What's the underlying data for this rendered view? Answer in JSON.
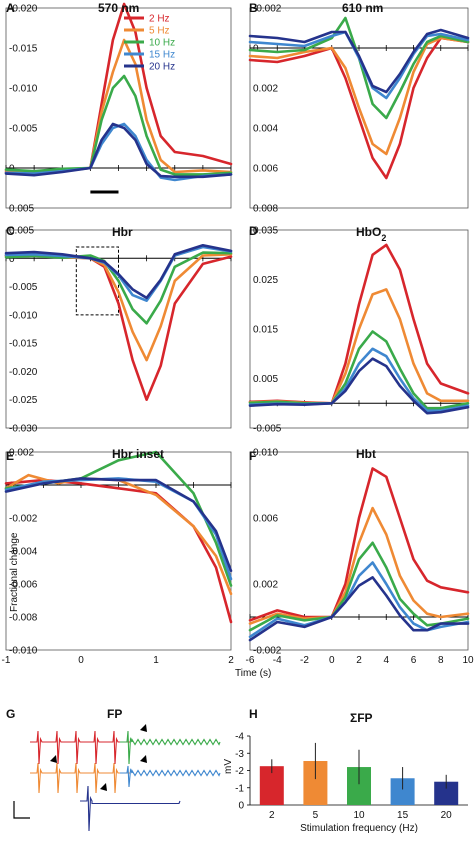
{
  "colors": [
    "#d7262c",
    "#ef8a34",
    "#3aaa4a",
    "#3f87cf",
    "#25338c"
  ],
  "legend": [
    "2 Hz",
    "5 Hz",
    "10 Hz",
    "15 Hz",
    "20 Hz"
  ],
  "shared": {
    "time_axis_label": "Time (s)",
    "fractional_label": "Fractional change",
    "stim_freq_label": "Stimulation frequency (Hz)",
    "mv_label": "mV"
  },
  "chart_data": [
    {
      "id": "A",
      "letter": "A",
      "title": "570 nm",
      "type": "line",
      "x_ticks": [],
      "y_ticks": [
        "-0.020",
        "-0.015",
        "-0.010",
        "-0.005",
        "0",
        "0.005"
      ],
      "ylim": [
        -0.02,
        0.005
      ],
      "y_inverted": true,
      "xlim": [
        -6,
        10
      ],
      "legend_visible": true,
      "legend_placement": "top-right",
      "stimulus_bar": [
        0,
        2
      ],
      "series": [
        {
          "name": "2 Hz",
          "x": [
            -6,
            -4,
            -2,
            0,
            0.8,
            1.6,
            2.4,
            3.2,
            4.0,
            5.0,
            6.0,
            8,
            10
          ],
          "y": [
            0.0005,
            0.0008,
            0.0003,
            0,
            -0.008,
            -0.016,
            -0.0205,
            -0.017,
            -0.01,
            -0.004,
            -0.002,
            -0.0015,
            -0.0005
          ]
        },
        {
          "name": "5 Hz",
          "x": [
            -6,
            -4,
            -2,
            0,
            0.8,
            1.6,
            2.4,
            3.2,
            4.0,
            5.0,
            6.0,
            8,
            10
          ],
          "y": [
            0.0003,
            0.0005,
            0.0002,
            0,
            -0.007,
            -0.012,
            -0.016,
            -0.013,
            -0.006,
            -0.001,
            0.0005,
            0.0003,
            0.0005
          ]
        },
        {
          "name": "10 Hz",
          "x": [
            -6,
            -4,
            -2,
            0,
            0.8,
            1.6,
            2.4,
            3.2,
            4.0,
            5.0,
            6.0,
            8,
            10
          ],
          "y": [
            0.0002,
            0.0004,
            0.0001,
            0,
            -0.006,
            -0.01,
            -0.0115,
            -0.009,
            -0.004,
            0.0002,
            0.0008,
            0.0008,
            0.0006
          ]
        },
        {
          "name": "15 Hz",
          "x": [
            -6,
            -4,
            -2,
            0,
            0.8,
            1.6,
            2.4,
            3.2,
            4.0,
            5.0,
            6.0,
            8,
            10
          ],
          "y": [
            0.0006,
            0.0007,
            0.0004,
            0,
            -0.003,
            -0.005,
            -0.0055,
            -0.004,
            -0.001,
            0.0012,
            0.0015,
            0.001,
            0.0008
          ]
        },
        {
          "name": "20 Hz",
          "x": [
            -6,
            -4,
            -2,
            0,
            0.8,
            1.6,
            2.4,
            3.2,
            4.0,
            5.0,
            6.0,
            8,
            10
          ],
          "y": [
            0.0007,
            0.0009,
            0.0005,
            0,
            -0.0035,
            -0.0055,
            -0.005,
            -0.0035,
            -0.0005,
            0.001,
            0.0011,
            0.0011,
            0.0008
          ]
        }
      ]
    },
    {
      "id": "B",
      "letter": "B",
      "title": "610 nm",
      "type": "line",
      "x_ticks": [],
      "y_ticks": [
        "-0.002",
        "0",
        "0.002",
        "0.004",
        "0.006",
        "0.008"
      ],
      "ylim": [
        -0.002,
        0.008
      ],
      "y_inverted": true,
      "xlim": [
        -6,
        10
      ],
      "series": [
        {
          "name": "2 Hz",
          "x": [
            -6,
            -4,
            -2,
            0,
            1,
            2,
            3,
            4,
            5,
            6,
            7,
            8,
            10
          ],
          "y": [
            0.0006,
            0.0007,
            0.0004,
            0,
            0.0015,
            0.0035,
            0.0055,
            0.0065,
            0.0048,
            0.002,
            0.0005,
            -0.0005,
            -0.0003
          ]
        },
        {
          "name": "5 Hz",
          "x": [
            -6,
            -4,
            -2,
            0,
            1,
            2,
            3,
            4,
            5,
            6,
            7,
            8,
            10
          ],
          "y": [
            0.0004,
            0.0005,
            0.0002,
            0,
            0.001,
            0.003,
            0.0048,
            0.0053,
            0.0035,
            0.0012,
            -0.0002,
            -0.0005,
            -0.0003
          ]
        },
        {
          "name": "10 Hz",
          "x": [
            -6,
            -4,
            -2,
            0,
            1,
            2,
            3,
            4,
            5,
            6,
            7,
            8,
            10
          ],
          "y": [
            0.0001,
            0.0002,
            0.0001,
            -0.0005,
            -0.0015,
            0.0005,
            0.0028,
            0.0035,
            0.0022,
            0.0008,
            -0.0003,
            -0.0006,
            -0.0003
          ]
        },
        {
          "name": "15 Hz",
          "x": [
            -6,
            -4,
            -2,
            0,
            1,
            2,
            3,
            4,
            5,
            6,
            7,
            8,
            10
          ],
          "y": [
            -0.0003,
            -0.0002,
            -0.0001,
            -0.0006,
            -0.0008,
            0.0005,
            0.002,
            0.0025,
            0.0015,
            0.0003,
            -0.0006,
            -0.0007,
            -0.0004
          ]
        },
        {
          "name": "20 Hz",
          "x": [
            -6,
            -4,
            -2,
            0,
            1,
            2,
            3,
            4,
            5,
            6,
            7,
            8,
            10
          ],
          "y": [
            -0.0006,
            -0.0005,
            -0.0003,
            -0.0008,
            -0.0008,
            0.0004,
            0.0019,
            0.0022,
            0.0013,
            0.0002,
            -0.0007,
            -0.0009,
            -0.0005
          ]
        }
      ]
    },
    {
      "id": "C",
      "letter": "C",
      "title": "Hbr",
      "type": "line",
      "x_ticks": [],
      "y_ticks": [
        "0.005",
        "0",
        "-0.005",
        "-0.010",
        "-0.015",
        "-0.020",
        "-0.025",
        "-0.030"
      ],
      "ylim": [
        -0.03,
        0.005
      ],
      "y_inverted": false,
      "xlim": [
        -6,
        10
      ],
      "inset_box": [
        -1,
        2,
        -0.01,
        0.002
      ],
      "series": [
        {
          "name": "2 Hz",
          "x": [
            -6,
            -4,
            -2,
            0,
            1,
            2,
            3,
            4,
            5,
            6,
            8,
            10
          ],
          "y": [
            0.0005,
            0.0006,
            0.0003,
            0,
            -0.0015,
            -0.008,
            -0.018,
            -0.025,
            -0.019,
            -0.008,
            -0.001,
            0.0003
          ]
        },
        {
          "name": "5 Hz",
          "x": [
            -6,
            -4,
            -2,
            0,
            1,
            2,
            3,
            4,
            5,
            6,
            8,
            10
          ],
          "y": [
            0.0004,
            0.0005,
            0.0002,
            0,
            -0.0012,
            -0.006,
            -0.013,
            -0.018,
            -0.012,
            -0.004,
            0.0005,
            0.0007
          ]
        },
        {
          "name": "10 Hz",
          "x": [
            -6,
            -4,
            -2,
            0,
            1,
            2,
            3,
            4,
            5,
            6,
            8,
            10
          ],
          "y": [
            0.0002,
            0.0004,
            0.0001,
            0.0005,
            -0.0005,
            -0.004,
            -0.009,
            -0.0115,
            -0.0075,
            -0.0015,
            0.001,
            0.0009
          ]
        },
        {
          "name": "15 Hz",
          "x": [
            -6,
            -4,
            -2,
            0,
            1,
            2,
            3,
            4,
            5,
            6,
            8,
            10
          ],
          "y": [
            0.0006,
            0.0007,
            0.0004,
            0,
            -0.0008,
            -0.003,
            -0.0065,
            -0.0075,
            -0.004,
            0.0005,
            0.002,
            0.0012
          ]
        },
        {
          "name": "20 Hz",
          "x": [
            -6,
            -4,
            -2,
            0,
            1,
            2,
            3,
            4,
            5,
            6,
            8,
            10
          ],
          "y": [
            0.0009,
            0.0011,
            0.0007,
            0,
            -0.0006,
            -0.0028,
            -0.0055,
            -0.007,
            -0.0038,
            0.0007,
            0.0023,
            0.0013
          ]
        }
      ]
    },
    {
      "id": "D",
      "letter": "D",
      "title": "HbO",
      "title_sub": "2",
      "type": "line",
      "x_ticks": [],
      "y_ticks": [
        "0.035",
        "0.025",
        "0.015",
        "0.005",
        "-0.005"
      ],
      "ylim": [
        -0.005,
        0.035
      ],
      "y_inverted": false,
      "xlim": [
        -6,
        10
      ],
      "series": [
        {
          "name": "2 Hz",
          "x": [
            -6,
            -4,
            -2,
            0,
            1,
            2,
            3,
            4,
            5,
            6,
            7,
            8,
            10
          ],
          "y": [
            0.0003,
            0.0005,
            0.0002,
            0,
            0.008,
            0.02,
            0.03,
            0.032,
            0.027,
            0.017,
            0.008,
            0.004,
            0.002
          ]
        },
        {
          "name": "5 Hz",
          "x": [
            -6,
            -4,
            -2,
            0,
            1,
            2,
            3,
            4,
            5,
            6,
            7,
            8,
            10
          ],
          "y": [
            0.0002,
            0.0004,
            0.0001,
            0,
            0.006,
            0.015,
            0.022,
            0.023,
            0.017,
            0.008,
            0.002,
            0.0005,
            0.0005
          ]
        },
        {
          "name": "10 Hz",
          "x": [
            -6,
            -4,
            -2,
            0,
            1,
            2,
            3,
            4,
            5,
            6,
            7,
            8,
            10
          ],
          "y": [
            0.0001,
            0.0003,
            0,
            0,
            0.004,
            0.011,
            0.0145,
            0.0125,
            0.007,
            0.002,
            -0.001,
            -0.001,
            0
          ]
        },
        {
          "name": "15 Hz",
          "x": [
            -6,
            -4,
            -2,
            0,
            1,
            2,
            3,
            4,
            5,
            6,
            7,
            8,
            10
          ],
          "y": [
            -0.0003,
            -0.0001,
            -0.0002,
            0,
            0.003,
            0.008,
            0.011,
            0.0095,
            0.005,
            0.001,
            -0.0015,
            -0.0015,
            -0.0005
          ]
        },
        {
          "name": "20 Hz",
          "x": [
            -6,
            -4,
            -2,
            0,
            1,
            2,
            3,
            4,
            5,
            6,
            7,
            8,
            10
          ],
          "y": [
            -0.0005,
            -0.0002,
            -0.0003,
            0,
            0.0025,
            0.0065,
            0.009,
            0.0075,
            0.0035,
            0.0005,
            -0.002,
            -0.0018,
            -0.0008
          ]
        }
      ]
    },
    {
      "id": "E",
      "letter": "E",
      "title": "Hbr inset",
      "type": "line",
      "x_ticks": [
        "-1",
        "0",
        "1",
        "2"
      ],
      "y_ticks": [
        "0.002",
        "0",
        "-0.002",
        "-0.004",
        "-0.006",
        "-0.008",
        "-0.010"
      ],
      "ylim": [
        -0.01,
        0.002
      ],
      "y_inverted": false,
      "xlim": [
        -1,
        2
      ],
      "xlabel": "Time (s)",
      "series": [
        {
          "name": "2 Hz",
          "x": [
            -1,
            -0.5,
            0,
            0.5,
            1,
            1.5,
            1.8,
            2
          ],
          "y": [
            0.0001,
            0.0003,
            0.0001,
            -0.0002,
            -0.0005,
            -0.0025,
            -0.005,
            -0.0083
          ]
        },
        {
          "name": "5 Hz",
          "x": [
            -1,
            -0.7,
            -0.3,
            0,
            0.5,
            1,
            1.5,
            1.8,
            2
          ],
          "y": [
            -0.0002,
            0.0006,
            0.0001,
            0.0004,
            0.0003,
            -0.0006,
            -0.0025,
            -0.0043,
            -0.0066
          ]
        },
        {
          "name": "10 Hz",
          "x": [
            -1,
            -0.5,
            0,
            0.5,
            1,
            1.5,
            1.8,
            2
          ],
          "y": [
            -0.0002,
            0.0001,
            0.0004,
            0.0015,
            0.002,
            -0.0005,
            -0.0035,
            -0.0061
          ]
        },
        {
          "name": "15 Hz",
          "x": [
            -1,
            -0.5,
            0,
            0.5,
            1,
            1.5,
            1.8,
            2
          ],
          "y": [
            -0.0003,
            0.0002,
            0.0003,
            0.0004,
            0.0002,
            -0.001,
            -0.003,
            -0.0057
          ]
        },
        {
          "name": "20 Hz",
          "x": [
            -1,
            -0.5,
            0,
            0.5,
            1,
            1.5,
            1.8,
            2
          ],
          "y": [
            -0.0004,
            0.0001,
            0.0004,
            0.0003,
            0.0003,
            -0.001,
            -0.0028,
            -0.0052
          ]
        }
      ]
    },
    {
      "id": "F",
      "letter": "F",
      "title": "Hbt",
      "type": "line",
      "x_ticks": [
        "-6",
        "-4",
        "-2",
        "0",
        "2",
        "4",
        "6",
        "8",
        "10"
      ],
      "y_ticks": [
        "0.010",
        "0.006",
        "0.002",
        "-0.002"
      ],
      "ylim": [
        -0.002,
        0.01
      ],
      "y_inverted": false,
      "xlim": [
        -6,
        10
      ],
      "series": [
        {
          "name": "2 Hz",
          "x": [
            -6,
            -4,
            -2,
            0,
            1,
            2,
            3,
            4,
            5,
            6,
            7,
            8,
            10
          ],
          "y": [
            -0.0002,
            0.0004,
            0,
            0,
            0.002,
            0.006,
            0.009,
            0.0085,
            0.006,
            0.0035,
            0.0022,
            0.0018,
            0.0015
          ]
        },
        {
          "name": "5 Hz",
          "x": [
            -6,
            -4,
            -2,
            0,
            1,
            2,
            3,
            4,
            5,
            6,
            7,
            8,
            10
          ],
          "y": [
            -0.0004,
            0.0002,
            -0.0001,
            0,
            0.0015,
            0.0045,
            0.0066,
            0.005,
            0.0025,
            0.001,
            0.0002,
            0,
            0.0002
          ]
        },
        {
          "name": "10 Hz",
          "x": [
            -6,
            -4,
            -2,
            0,
            1,
            2,
            3,
            4,
            5,
            6,
            7,
            8,
            10
          ],
          "y": [
            -0.0008,
            0.0001,
            -0.0002,
            0,
            0.0012,
            0.0035,
            0.0045,
            0.003,
            0.0011,
            0.0002,
            -0.0005,
            -0.0004,
            -0.0001
          ]
        },
        {
          "name": "15 Hz",
          "x": [
            -6,
            -4,
            -2,
            0,
            1,
            2,
            3,
            4,
            5,
            6,
            7,
            8,
            10
          ],
          "y": [
            -0.0012,
            -0.0001,
            -0.0005,
            0,
            0.0009,
            0.0025,
            0.0033,
            0.002,
            0.0006,
            -0.0004,
            -0.0008,
            -0.0006,
            -0.0003
          ]
        },
        {
          "name": "20 Hz",
          "x": [
            -6,
            -4,
            -2,
            0,
            1,
            2,
            3,
            4,
            5,
            6,
            7,
            8,
            10
          ],
          "y": [
            -0.0014,
            -0.0003,
            -0.0006,
            0,
            0.0009,
            0.0019,
            0.0024,
            0.0013,
            0.0001,
            -0.0008,
            -0.0008,
            -0.0004,
            -0.0004
          ]
        }
      ]
    },
    {
      "id": "H",
      "letter": "H",
      "title": "ΣFP",
      "type": "bar",
      "categories": [
        "2",
        "5",
        "10",
        "15",
        "20"
      ],
      "values": [
        -2.25,
        -2.55,
        -2.2,
        -1.55,
        -1.35
      ],
      "errors": [
        0.4,
        1.05,
        1.0,
        0.65,
        0.4
      ],
      "y_ticks": [
        "0",
        "-1",
        "-2",
        "-3",
        "-4"
      ],
      "ylim": [
        -4,
        0
      ],
      "ylabel": "mV",
      "xlabel": "Stimulation frequency (Hz)"
    }
  ],
  "panel_G": {
    "letter": "G",
    "title": "FP"
  }
}
